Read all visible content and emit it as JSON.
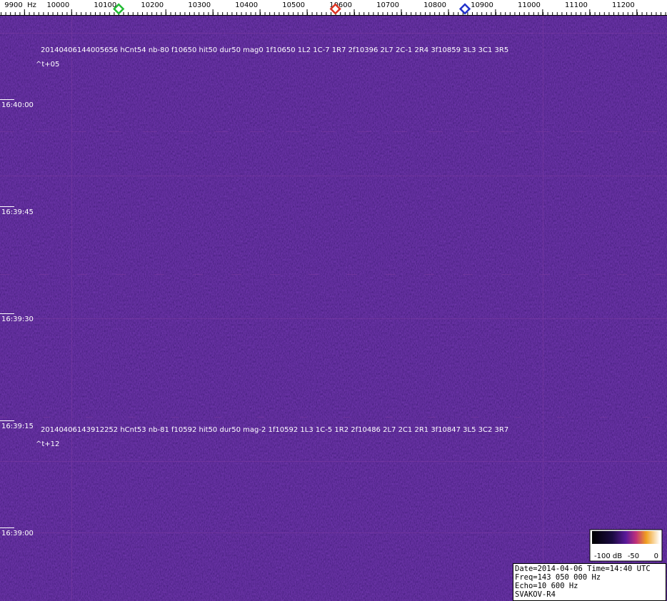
{
  "frequency_axis": {
    "xlim": [
      9848,
      11264
    ],
    "ticks": [
      {
        "value": 9900,
        "label": "9900  Hz"
      },
      10000,
      10100,
      10200,
      10300,
      10400,
      10500,
      10600,
      10700,
      10800,
      10900,
      11000,
      11100,
      11200
    ],
    "markers": [
      {
        "value": 10100,
        "color": "#22bb33"
      },
      {
        "value": 10560,
        "color": "#dd3322"
      },
      {
        "value": 10835,
        "color": "#2233cc"
      }
    ]
  },
  "time_labels": [
    "16:40:00",
    "16:39:45",
    "16:39:30",
    "16:39:15",
    "16:39:00"
  ],
  "detections": [
    {
      "text": "20140406144005656 hCnt54 nb-80 f10650 hit50 dur50 mag0 1f10650 1L2 1C-7 1R7 2f10396 2L7 2C-1 2R4 3f10859 3L3 3C1 3R5",
      "offset": "^t+05"
    },
    {
      "text": "20140406143912252 hCnt53 nb-81 f10592 hit50 dur50 mag-2 1f10592 1L3 1C-5 1R2 2f10486 2L7 2C1 2R1 3f10847 3L5 3C2 3R7",
      "offset": "^t+12"
    }
  ],
  "colorbar": {
    "labels": [
      "-100 dB",
      "-50",
      "0"
    ]
  },
  "info": [
    "Date=2014-04-06 Time=14:40 UTC",
    "Freq=143 050 000 Hz",
    "Echo=10 600 Hz",
    "SVAKOV-R4"
  ]
}
